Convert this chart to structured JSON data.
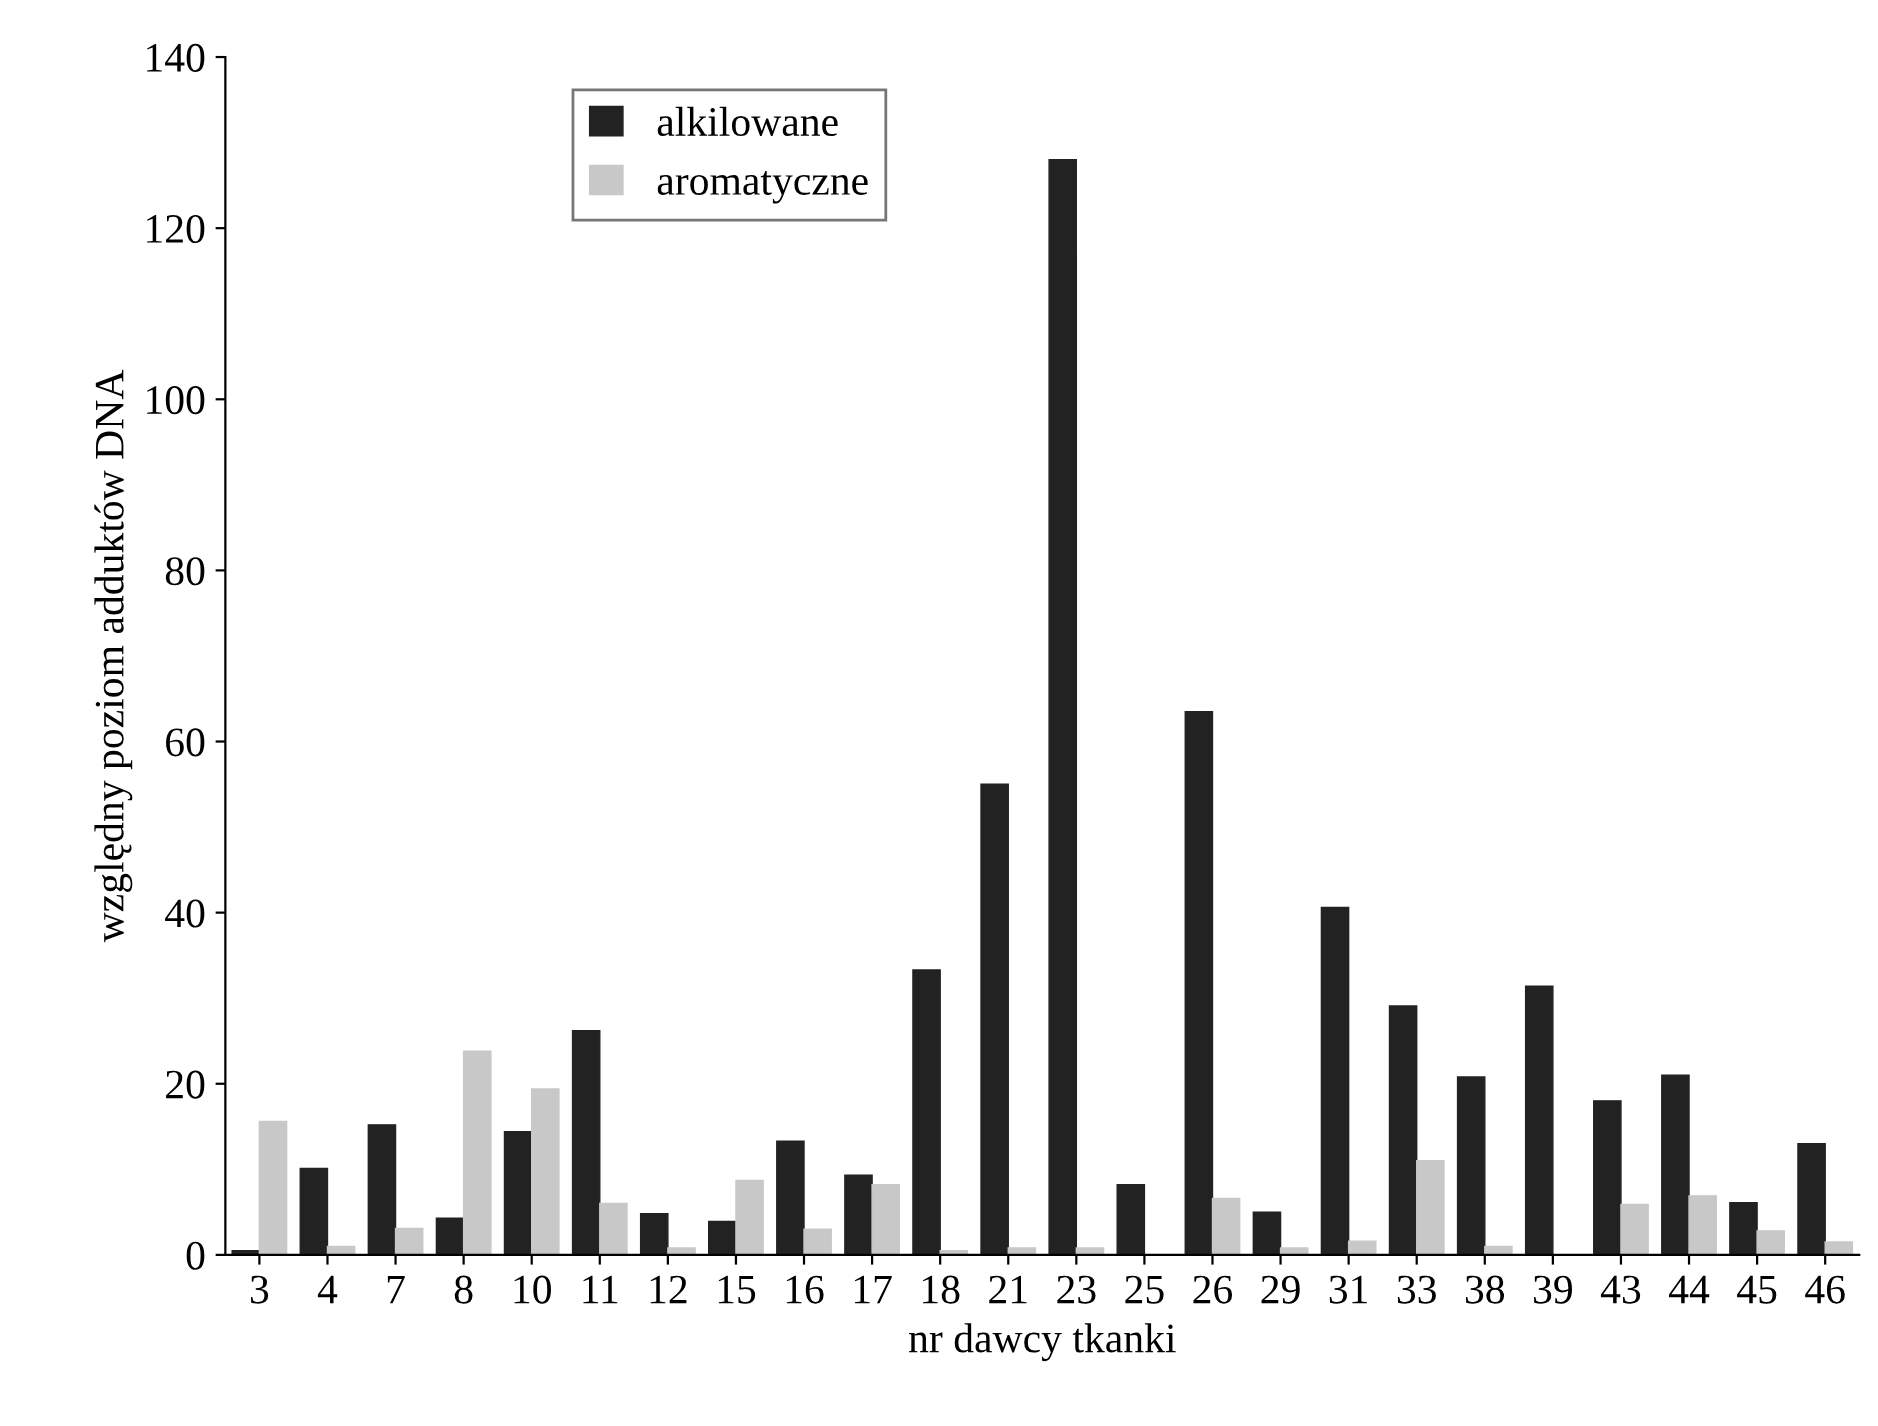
{
  "chart_data": {
    "type": "bar",
    "xlabel": "nr dawcy tkanki",
    "ylabel": "względny poziom adduktów DNA",
    "categories": [
      "3",
      "4",
      "7",
      "8",
      "10",
      "11",
      "12",
      "15",
      "16",
      "17",
      "18",
      "21",
      "23",
      "25",
      "26",
      "29",
      "31",
      "33",
      "38",
      "39",
      "43",
      "44",
      "45",
      "46"
    ],
    "series": [
      {
        "name": "alkilowane",
        "color": "#222222",
        "values": [
          0.5,
          10.1,
          15.2,
          4.3,
          14.4,
          26.2,
          4.8,
          3.9,
          13.3,
          9.3,
          33.3,
          55,
          128,
          8.2,
          63.5,
          5,
          40.6,
          29.1,
          20.8,
          31.4,
          18,
          21,
          6.1,
          13
        ]
      },
      {
        "name": "aromatyczne",
        "color": "#c8c8c8",
        "values": [
          15.6,
          1,
          3.1,
          23.8,
          19.4,
          6,
          0.8,
          8.7,
          3,
          8.2,
          0.5,
          0.8,
          0.8,
          null,
          6.6,
          0.8,
          1.6,
          11,
          1,
          null,
          5.9,
          6.9,
          2.8,
          1.5
        ]
      }
    ],
    "ylim": [
      0,
      140
    ],
    "yticks": [
      0,
      20,
      40,
      60,
      80,
      100,
      120,
      140
    ],
    "grid": false,
    "legend": "top left"
  }
}
